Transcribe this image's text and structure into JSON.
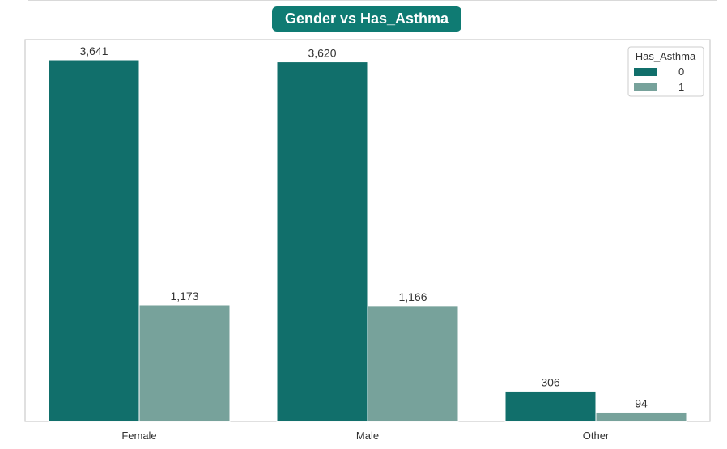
{
  "chart_data": {
    "type": "bar",
    "title": "Gender vs Has_Asthma",
    "categories": [
      "Female",
      "Male",
      "Other"
    ],
    "series": [
      {
        "name": "0",
        "values": [
          3641,
          3620,
          306
        ],
        "labels": [
          "3,641",
          "3,620",
          "306"
        ]
      },
      {
        "name": "1",
        "values": [
          1173,
          1166,
          94
        ],
        "labels": [
          "1,173",
          "1,166",
          "94"
        ]
      }
    ],
    "legend_title": "Has_Asthma",
    "legend_position": "top-right",
    "xlabel": "",
    "ylabel": "",
    "ylim": [
      0,
      3641
    ],
    "grid": false
  },
  "colors": {
    "title_bg": "#0f7b73",
    "title_text": "#ffffff",
    "series_0": "#116f6b",
    "series_1": "#77a29b",
    "frame": "#cccccc",
    "text": "#333333"
  }
}
